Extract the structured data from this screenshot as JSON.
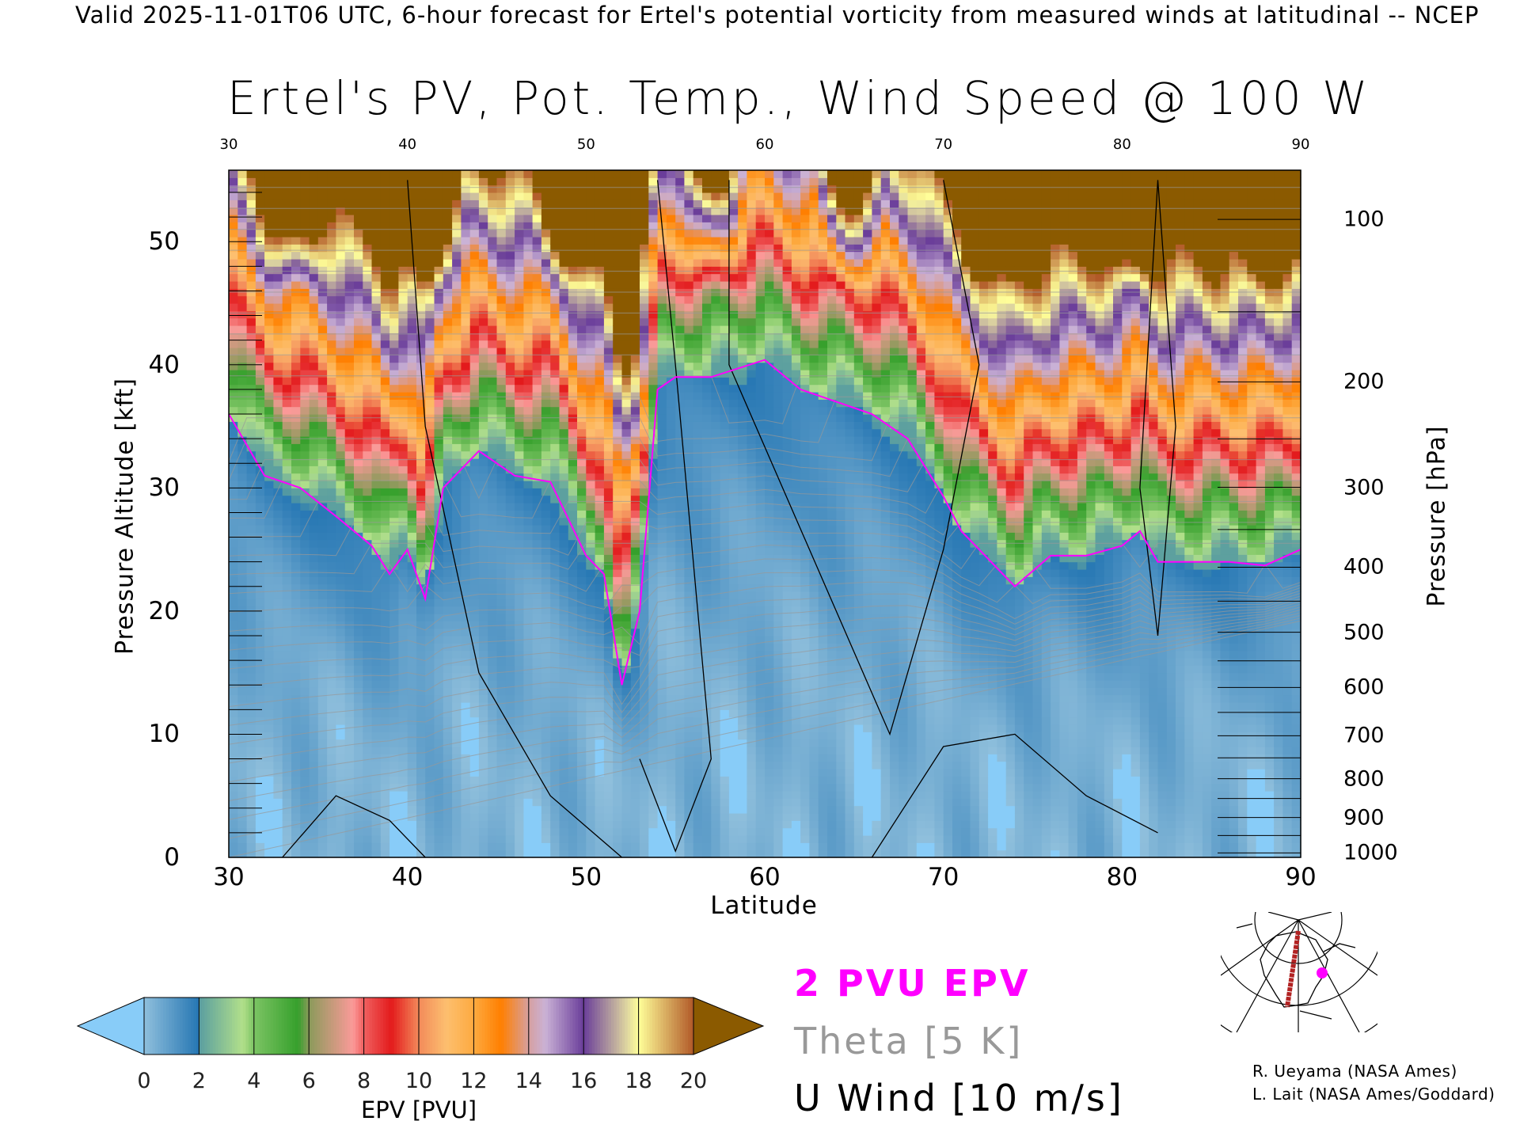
{
  "header": {
    "subtitle": "Valid 2025-11-01T06 UTC, 6-hour forecast for Ertel's potential vorticity from measured winds at latitudinal -- NCEP",
    "title": "Ertel's PV, Pot. Temp., Wind Speed @ 100 W"
  },
  "chart_data": {
    "type": "heatmap",
    "title": "Ertel's PV, Pot. Temp., Wind Speed @ 100 W",
    "xlabel": "Latitude",
    "ylabel": "Pressure Altitude [kft]",
    "y2label": "Pressure [hPa]",
    "xlim": [
      30,
      90
    ],
    "ylim": [
      0,
      55.8
    ],
    "x_ticks": [
      "30",
      "40",
      "50",
      "60",
      "70",
      "80",
      "90"
    ],
    "x_tick_values": [
      30,
      40,
      50,
      60,
      70,
      80,
      90
    ],
    "y_ticks": [
      "0",
      "10",
      "20",
      "30",
      "40",
      "50"
    ],
    "y_tick_values": [
      0,
      10,
      20,
      30,
      40,
      50
    ],
    "pressure_ticks": [
      "100",
      "200",
      "300",
      "400",
      "500",
      "600",
      "700",
      "800",
      "900",
      "1000"
    ],
    "pressure_tick_values": [
      100,
      200,
      300,
      400,
      500,
      600,
      700,
      800,
      900,
      1000
    ],
    "tropopause_2pvu": {
      "lat": [
        30,
        32,
        34,
        36,
        38,
        39,
        40,
        41,
        42,
        44,
        46,
        48,
        50,
        51,
        52,
        53,
        54,
        55,
        57,
        60,
        62,
        64,
        66,
        68,
        70,
        71,
        72,
        74,
        76,
        78,
        80,
        81,
        82,
        86,
        88,
        90
      ],
      "alt_kft": [
        36,
        31,
        30,
        27.7,
        25.3,
        23,
        25,
        21,
        30,
        33,
        31,
        30.5,
        24.5,
        23,
        14,
        20,
        38,
        39,
        39,
        40.4,
        38,
        37,
        36,
        34,
        29.3,
        26.5,
        25,
        22,
        24.5,
        24.5,
        25.3,
        26.5,
        24,
        24,
        23.7,
        25
      ]
    },
    "colorbar": {
      "label": "EPV [PVU]",
      "ticks": [
        "0",
        "2",
        "4",
        "6",
        "8",
        "10",
        "12",
        "14",
        "16",
        "18",
        "20"
      ],
      "range": [
        0,
        20
      ],
      "under_color": "#88ccf8",
      "over_color": "#8b5a00",
      "stops": [
        [
          0,
          "#8fbfdc"
        ],
        [
          1.95,
          "#2878b4"
        ],
        [
          2,
          "#5a9ea0"
        ],
        [
          3.6,
          "#b2e08a"
        ],
        [
          4,
          "#7cc464"
        ],
        [
          5.6,
          "#36a02c"
        ],
        [
          6,
          "#8a9a5a"
        ],
        [
          7.6,
          "#fb9a99"
        ],
        [
          8,
          "#f06060"
        ],
        [
          9,
          "#e31a1c"
        ],
        [
          10,
          "#f38a5a"
        ],
        [
          11,
          "#fdbf6f"
        ],
        [
          12,
          "#fdaa40"
        ],
        [
          13,
          "#ff7f00"
        ],
        [
          14,
          "#d6a0a0"
        ],
        [
          14.6,
          "#cab2d6"
        ],
        [
          16,
          "#6a3d9a"
        ],
        [
          17.6,
          "#e0d8a0"
        ],
        [
          18,
          "#ffff99"
        ],
        [
          20,
          "#b15928"
        ]
      ]
    }
  },
  "legend": {
    "pvu": "2 PVU EPV",
    "theta": "Theta [5 K]",
    "wind": "U Wind [10 m/s]",
    "pvu_color": "#ff00ff",
    "theta_color": "#999999",
    "wind_color": "#000000"
  },
  "map": {
    "section_color": "#b22222",
    "marker_color": "#ff00ff"
  },
  "credits": {
    "line1": "R. Ueyama (NASA Ames)",
    "line2": "L. Lait (NASA Ames/Goddard)"
  }
}
